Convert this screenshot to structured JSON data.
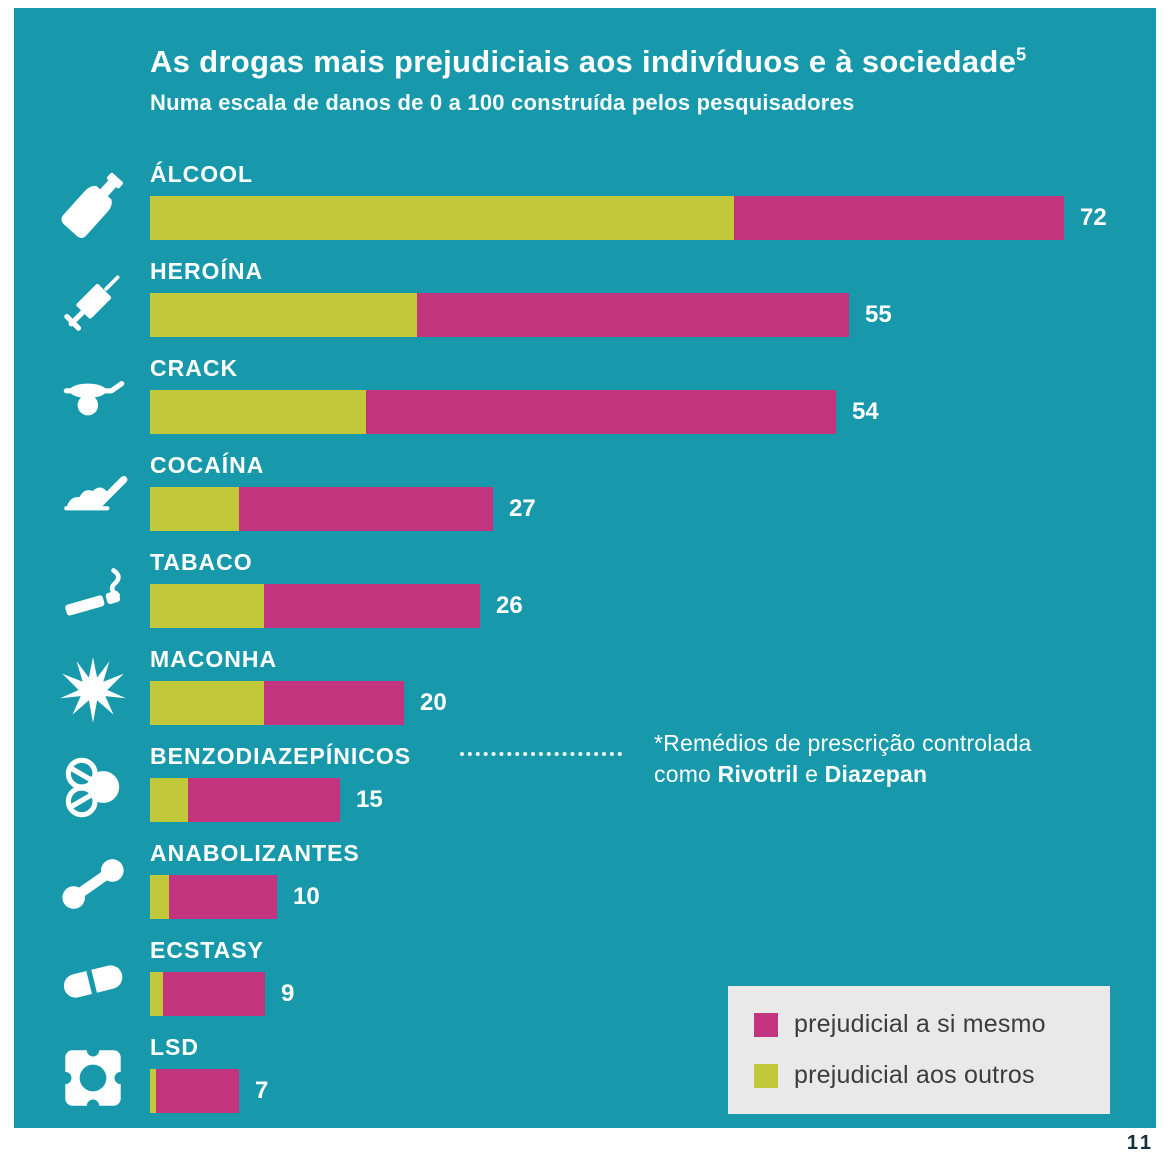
{
  "page_number": "11",
  "header": {
    "title": "As drogas mais prejudiciais aos indivíduos e à sociedade",
    "title_superscript": "5",
    "subtitle": "Numa escala de danos de 0 a 100 construída pelos pesquisadores"
  },
  "annotation": {
    "line1": "*Remédios de prescrição controlada",
    "line2_prefix": "como",
    "drug1": "Rivotril",
    "conjunction": "e",
    "drug2": "Diazepan"
  },
  "legend": {
    "items": [
      {
        "label": "prejudicial a si mesmo",
        "color": "#c2347e"
      },
      {
        "label": "prejudicial aos outros",
        "color": "#c1c93b"
      }
    ]
  },
  "colors": {
    "background": "#1799ab",
    "self": "#c2347e",
    "others": "#c1c93b",
    "text": "#ffffff",
    "legend_background": "#e9e9e9"
  },
  "chart_data": {
    "type": "bar",
    "orientation": "horizontal",
    "title": "As drogas mais prejudiciais aos indivíduos e à sociedade",
    "subtitle": "Numa escala de danos de 0 a 100 construída pelos pesquisadores",
    "value_range": [
      0,
      100
    ],
    "legend": [
      "prejudicial a si mesmo",
      "prejudicial aos outros"
    ],
    "series_meaning": {
      "self": "prejudicial a si mesmo",
      "others": "prejudicial aos outros"
    },
    "rows": [
      {
        "label": "ÁLCOOL",
        "icon": "bottle-icon",
        "total": 72,
        "others": 46,
        "self": 26
      },
      {
        "label": "HEROÍNA",
        "icon": "syringe-icon",
        "total": 55,
        "others": 21,
        "self": 34
      },
      {
        "label": "CRACK",
        "icon": "pipe-icon",
        "total": 54,
        "others": 17,
        "self": 37
      },
      {
        "label": "COCAÍNA",
        "icon": "powder-line-icon",
        "total": 27,
        "others": 7,
        "self": 20
      },
      {
        "label": "TABACO",
        "icon": "cigarette-icon",
        "total": 26,
        "others": 9,
        "self": 17
      },
      {
        "label": "MACONHA",
        "icon": "cannabis-leaf-icon",
        "total": 20,
        "others": 9,
        "self": 11
      },
      {
        "label": "BENZODIAZEPÍNICOS",
        "icon": "pills-icon",
        "total": 15,
        "others": 3,
        "self": 12
      },
      {
        "label": "ANABOLIZANTES",
        "icon": "dumbbell-icon",
        "total": 10,
        "others": 1.5,
        "self": 8.5
      },
      {
        "label": "ECSTASY",
        "icon": "capsule-icon",
        "total": 9,
        "others": 1,
        "self": 8
      },
      {
        "label": "LSD",
        "icon": "blotter-stamp-icon",
        "total": 7,
        "others": 0.5,
        "self": 6.5
      }
    ]
  }
}
